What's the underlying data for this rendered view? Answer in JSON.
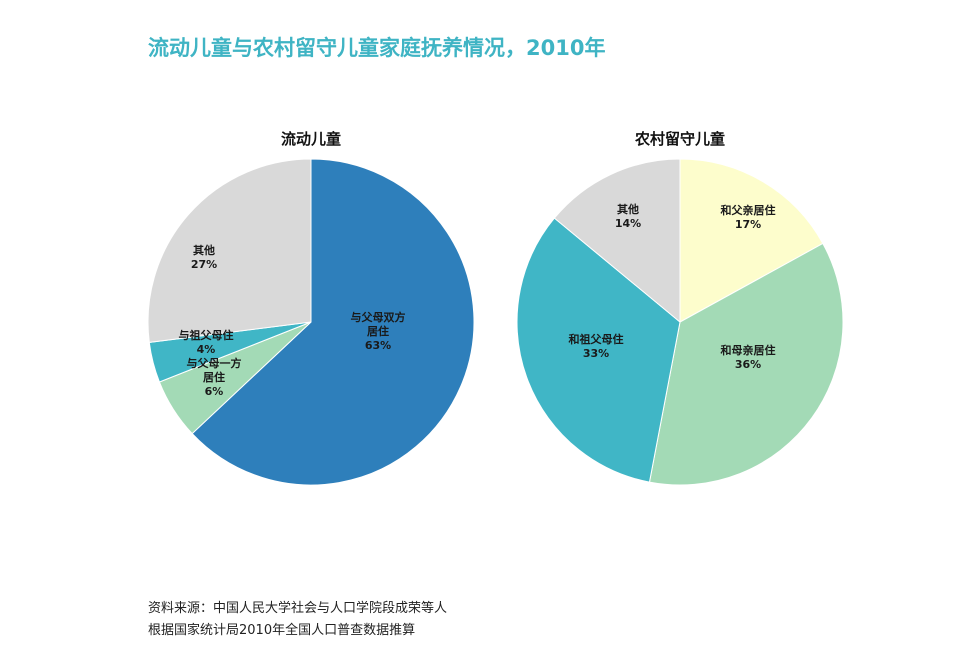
{
  "title": "流动儿童与农村留守儿童家庭抚养情况，2010年",
  "chart_data": [
    {
      "type": "pie",
      "title": "流动儿童",
      "slices": [
        {
          "label_lines": [
            "与父母双方",
            "居住"
          ],
          "pct_label": "63%",
          "value": 63,
          "color": "#2e7fbb"
        },
        {
          "label_lines": [
            "与父母一方",
            "居住"
          ],
          "pct_label": "6%",
          "value": 6,
          "color": "#a3dab6"
        },
        {
          "label_lines": [
            "与祖父母住"
          ],
          "pct_label": "4%",
          "value": 4,
          "color": "#40b6c6"
        },
        {
          "label_lines": [
            "其他"
          ],
          "pct_label": "27%",
          "value": 27,
          "color": "#d9d9d9"
        }
      ]
    },
    {
      "type": "pie",
      "title": "农村留守儿童",
      "slices": [
        {
          "label_lines": [
            "和父亲居住"
          ],
          "pct_label": "17%",
          "value": 17,
          "color": "#fdfdcc"
        },
        {
          "label_lines": [
            "和母亲居住"
          ],
          "pct_label": "36%",
          "value": 36,
          "color": "#a3dab6"
        },
        {
          "label_lines": [
            "和祖父母住"
          ],
          "pct_label": "33%",
          "value": 33,
          "color": "#40b6c6"
        },
        {
          "label_lines": [
            "其他"
          ],
          "pct_label": "14%",
          "value": 14,
          "color": "#d9d9d9"
        }
      ]
    }
  ],
  "source": {
    "line1": "资料来源：中国人民大学社会与人口学院段成荣等人",
    "line2": "根据国家统计局2010年全国人口普查数据推算"
  }
}
